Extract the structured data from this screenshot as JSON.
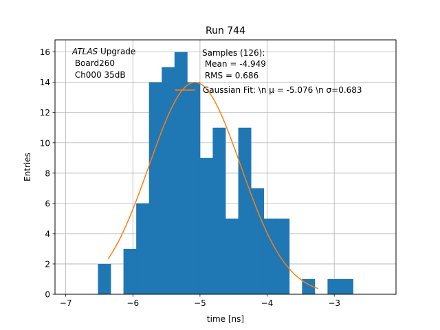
{
  "chart_data": {
    "type": "bar",
    "title": "Run 744",
    "xlabel": "time [ns]",
    "ylabel": "Entries",
    "xlim": [
      -7.16,
      -2.08
    ],
    "ylim": [
      0,
      16.8
    ],
    "xticks": [
      -7,
      -6,
      -5,
      -4,
      -3
    ],
    "xtick_labels": [
      "−7",
      "−6",
      "−5",
      "−4",
      "−3"
    ],
    "yticks": [
      0,
      2,
      4,
      6,
      8,
      10,
      12,
      14,
      16
    ],
    "ytick_labels": [
      "0",
      "2",
      "4",
      "6",
      "8",
      "10",
      "12",
      "14",
      "16"
    ],
    "grid": true,
    "histogram": {
      "name": "Samples (126)",
      "color": "#1f77b4",
      "bin_edges": [
        -6.52,
        -6.33,
        -6.14,
        -5.95,
        -5.76,
        -5.57,
        -5.38,
        -5.19,
        -5.0,
        -4.81,
        -4.62,
        -4.43,
        -4.24,
        -4.05,
        -3.86,
        -3.67,
        -3.48,
        -3.29,
        -3.1,
        -2.91,
        -2.72
      ],
      "counts": [
        2,
        0,
        3,
        6,
        14,
        15,
        16,
        14,
        9,
        11,
        5,
        11,
        7,
        5,
        5,
        0,
        1,
        0,
        1,
        1
      ]
    },
    "gaussian_fit": {
      "name": "Gaussian Fit",
      "color": "#ff7f0e",
      "amplitude": 14.0,
      "mu": -5.076,
      "sigma": 0.683,
      "x_range": [
        -6.37,
        -3.24
      ]
    },
    "legend": {
      "position": "top-right",
      "hist_lines": [
        "Samples (126):",
        " Mean = -4.949",
        " RMS = 0.686"
      ],
      "fit_label": "Gaussian Fit: \\n μ = -5.076 \\n σ=0.683"
    },
    "atlas_label": {
      "experiment": "ATLAS",
      "suffix": " Upgrade",
      "lines": [
        " Board260",
        " Ch000 35dB"
      ]
    }
  }
}
